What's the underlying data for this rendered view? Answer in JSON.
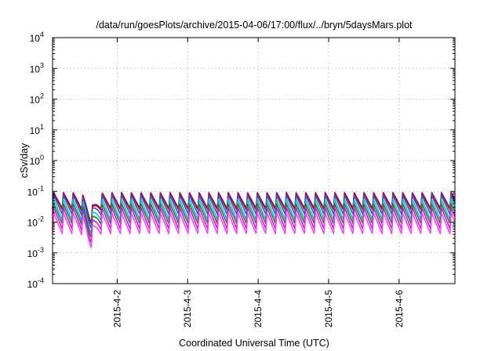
{
  "chart_data": {
    "type": "line",
    "title": "/data/run/goesPlots/archive/2015-04-06/17:00/flux/../bryn/5daysMars.plot",
    "xlabel": "Coordinated Universal Time (UTC)",
    "ylabel": "cSv/day",
    "yscale": "log",
    "ylim": [
      0.0001,
      10000
    ],
    "xlim": [
      "2015-04-01T02:00",
      "2015-04-06T19:00"
    ],
    "x_ticks": [
      {
        "label": "2015-4-2",
        "value": "2015-04-02T00:00"
      },
      {
        "label": "2015-4-3",
        "value": "2015-04-03T00:00"
      },
      {
        "label": "2015-4-4",
        "value": "2015-04-04T00:00"
      },
      {
        "label": "2015-4-5",
        "value": "2015-04-05T00:00"
      },
      {
        "label": "2015-4-6",
        "value": "2015-04-06T00:00"
      }
    ],
    "y_ticks": [
      {
        "base": "10",
        "exp": "-4"
      },
      {
        "base": "10",
        "exp": "-3"
      },
      {
        "base": "10",
        "exp": "-2"
      },
      {
        "base": "10",
        "exp": "-1"
      },
      {
        "base": "10",
        "exp": "0"
      },
      {
        "base": "10",
        "exp": "1"
      },
      {
        "base": "10",
        "exp": "2"
      },
      {
        "base": "10",
        "exp": "3"
      },
      {
        "base": "10",
        "exp": "4"
      }
    ],
    "grid": true,
    "pattern": {
      "period_hours": 3.3,
      "shape": "sawtooth: sharp rise to the peak, gradual decay"
    },
    "dip": {
      "time": "2015-04-01T15:00",
      "width_hours": 4.5,
      "factor": 0.35
    },
    "series": [
      {
        "color": "#5a2080",
        "peak": 0.092,
        "trough": 0.028
      },
      {
        "color": "#e00000",
        "peak": 0.085,
        "trough": 0.025
      },
      {
        "color": "#3050e0",
        "peak": 0.075,
        "trough": 0.018
      },
      {
        "color": "#00c8c8",
        "peak": 0.055,
        "trough": 0.012
      },
      {
        "color": "#2a7a30",
        "peak": 0.04,
        "trough": 0.009
      },
      {
        "color": "#c020c0",
        "peak": 0.03,
        "trough": 0.006
      },
      {
        "color": "#ff40ff",
        "peak": 0.02,
        "trough": 0.0042
      }
    ]
  }
}
